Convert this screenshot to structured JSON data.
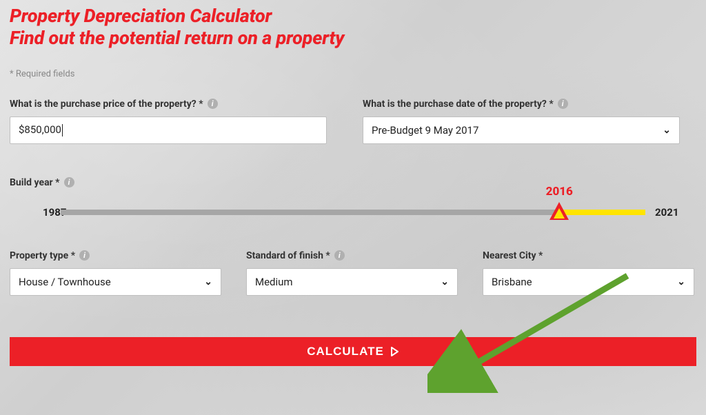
{
  "colors": {
    "accent": "#ec2027",
    "highlight": "#ffe400",
    "arrow": "#5ea22e",
    "track": "#a6a6a6",
    "field_border": "#bfbfbf",
    "text": "#222222"
  },
  "heading": {
    "line1": "Property Depreciation Calculator",
    "line2": "Find out the potential return on a property"
  },
  "required_note": "* Required fields",
  "fields": {
    "purchase_price": {
      "label": "What is the purchase price of the property? *",
      "value": "$850,000"
    },
    "purchase_date": {
      "label": "What is the purchase date of the property? *",
      "value": "Pre-Budget 9 May 2017"
    },
    "build_year": {
      "label": "Build year *",
      "min": 1987,
      "max": 2021,
      "value": 2016,
      "min_label": "1987",
      "max_label": "2021",
      "value_label": "2016"
    },
    "property_type": {
      "label": "Property type *",
      "value": "House / Townhouse"
    },
    "standard_of_finish": {
      "label": "Standard of finish *",
      "value": "Medium"
    },
    "nearest_city": {
      "label": "Nearest City *",
      "value": "Brisbane"
    }
  },
  "calculate_label": "CALCULATE"
}
